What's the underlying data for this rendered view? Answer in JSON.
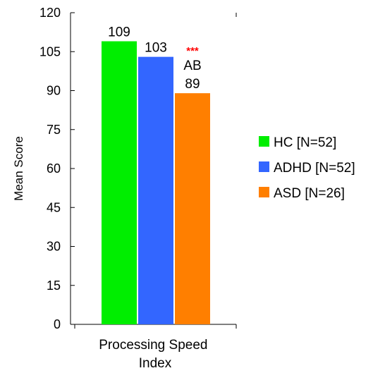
{
  "chart_data": {
    "type": "bar",
    "categories": [
      "Processing Speed\nIndex"
    ],
    "ylabel": "Mean Score",
    "xlabel": "",
    "ylim": [
      0,
      120
    ],
    "yticks": [
      0,
      15,
      30,
      45,
      60,
      75,
      90,
      105,
      120
    ],
    "grid": false,
    "legend_position": "right",
    "series": [
      {
        "name": "HC [N=52]",
        "values": [
          109
        ],
        "color": "#00ee00",
        "label": "109"
      },
      {
        "name": "ADHD [N=52]",
        "values": [
          103
        ],
        "color": "#3366ff",
        "label": "103"
      },
      {
        "name": "ASD [N=26]",
        "values": [
          89
        ],
        "color": "#ff7f00",
        "label": "89"
      }
    ],
    "annotations": [
      {
        "series": 2,
        "text": "***",
        "color": "#ff0000"
      },
      {
        "series": 2,
        "text": "AB",
        "color": "#000000"
      }
    ]
  }
}
